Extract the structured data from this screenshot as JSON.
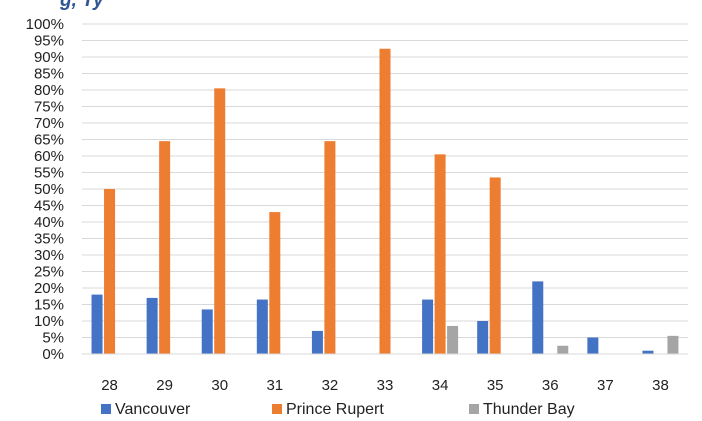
{
  "title_fragment": "g, Ty",
  "chart_data": {
    "type": "bar",
    "title": "",
    "xlabel": "",
    "ylabel": "",
    "categories": [
      "28",
      "29",
      "30",
      "31",
      "32",
      "33",
      "34",
      "35",
      "36",
      "37",
      "38"
    ],
    "series": [
      {
        "name": "Vancouver",
        "color": "#4472c4",
        "values": [
          18,
          17,
          13.5,
          16.5,
          7,
          0,
          16.5,
          10,
          22,
          5,
          1
        ]
      },
      {
        "name": "Prince Rupert",
        "color": "#ed7d31",
        "values": [
          50,
          64.5,
          80.5,
          43,
          64.5,
          92.5,
          60.5,
          53.5,
          0,
          0,
          0
        ]
      },
      {
        "name": "Thunder Bay",
        "color": "#a5a5a5",
        "values": [
          0,
          0,
          0,
          0,
          0,
          0,
          8.5,
          0,
          2.5,
          0,
          5.5
        ]
      }
    ],
    "ylim": [
      0,
      100
    ],
    "yticks": [
      "0%",
      "5%",
      "10%",
      "15%",
      "20%",
      "25%",
      "30%",
      "35%",
      "40%",
      "45%",
      "50%",
      "55%",
      "60%",
      "65%",
      "70%",
      "75%",
      "80%",
      "85%",
      "90%",
      "95%",
      "100%"
    ],
    "grid": true,
    "legend": "bottom"
  }
}
